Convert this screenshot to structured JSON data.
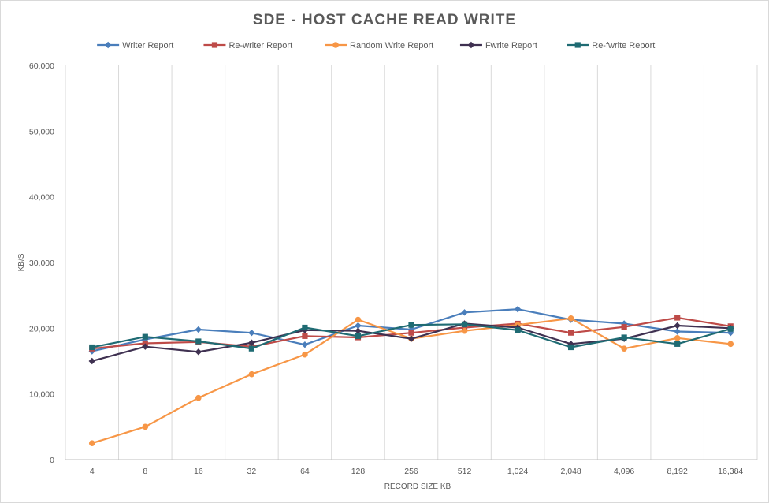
{
  "chart_data": {
    "type": "line",
    "title": "SDE - HOST CACHE READ WRITE",
    "xlabel": "RECORD SIZE KB",
    "ylabel": "KB/S",
    "categories": [
      "4",
      "8",
      "16",
      "32",
      "64",
      "128",
      "256",
      "512",
      "1,024",
      "2,048",
      "4,096",
      "8,192",
      "16,384"
    ],
    "ylim": [
      0,
      60000
    ],
    "yticks": [
      0,
      10000,
      20000,
      30000,
      40000,
      50000,
      60000
    ],
    "ytick_labels": [
      "0",
      "10,000",
      "20,000",
      "30,000",
      "40,000",
      "50,000",
      "60,000"
    ],
    "legend_position": "top",
    "grid": "vertical",
    "series": [
      {
        "name": "Writer Report",
        "color": "#4a7ebb",
        "marker": "diamond",
        "values": [
          16500,
          18300,
          19800,
          19300,
          17500,
          20400,
          19800,
          22400,
          22900,
          21300,
          20700,
          19500,
          19300
        ]
      },
      {
        "name": "Re-writer Report",
        "color": "#be4b48",
        "marker": "square",
        "values": [
          16900,
          17700,
          17900,
          17200,
          18800,
          18600,
          19300,
          20100,
          20700,
          19300,
          20200,
          21600,
          20300
        ]
      },
      {
        "name": "Random Write Report",
        "color": "#f79646",
        "marker": "circle",
        "values": [
          2500,
          5000,
          9400,
          13000,
          16000,
          21300,
          18400,
          19600,
          20500,
          21500,
          16900,
          18500,
          17600
        ]
      },
      {
        "name": "Fwrite Report",
        "color": "#3f3151",
        "marker": "diamond",
        "values": [
          15000,
          17200,
          16400,
          17800,
          19700,
          19600,
          18400,
          20700,
          20100,
          17600,
          18400,
          20400,
          20000
        ]
      },
      {
        "name": "Re-fwrite Report",
        "color": "#1f6b73",
        "marker": "square",
        "values": [
          17100,
          18700,
          18000,
          16900,
          20100,
          18800,
          20500,
          20600,
          19700,
          17100,
          18600,
          17600,
          19900
        ]
      }
    ]
  }
}
